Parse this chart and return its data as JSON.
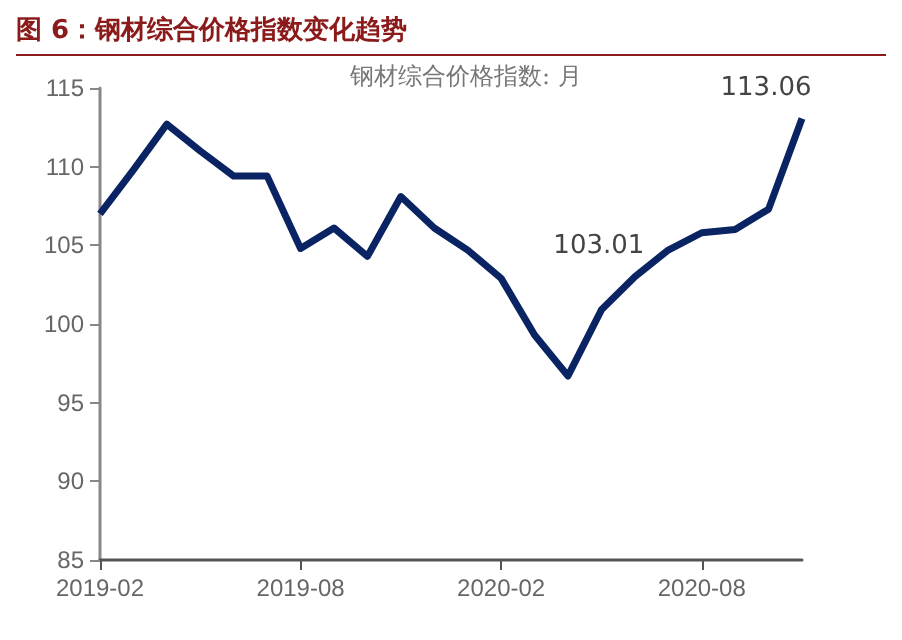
{
  "chart_data": {
    "type": "line",
    "title": "图 6：钢材综合价格指数变化趋势",
    "categories": [
      "2019-02",
      null,
      null,
      null,
      null,
      null,
      "2019-08",
      null,
      null,
      null,
      null,
      null,
      "2020-02",
      null,
      null,
      null,
      null,
      null,
      "2020-08",
      null,
      null,
      null
    ],
    "series": [
      {
        "name": "钢材综合价格指数: 月",
        "color": "#0a2463",
        "values": [
          107.0,
          109.8,
          112.7,
          111.0,
          109.4,
          109.4,
          104.8,
          106.1,
          104.3,
          108.1,
          106.1,
          104.7,
          102.9,
          99.3,
          96.7,
          100.9,
          103.01,
          104.7,
          105.8,
          106.0,
          107.3,
          113.06
        ],
        "value_labels": [
          null,
          null,
          null,
          null,
          null,
          null,
          null,
          null,
          null,
          null,
          null,
          null,
          null,
          null,
          null,
          null,
          "103.01",
          null,
          null,
          null,
          null,
          "113.06"
        ]
      }
    ],
    "ylim": [
      85,
      115
    ],
    "yticks": [
      85,
      90,
      95,
      100,
      105,
      110,
      115
    ],
    "grid": false,
    "legend": "top",
    "marker": "none",
    "line_style": "solid"
  }
}
